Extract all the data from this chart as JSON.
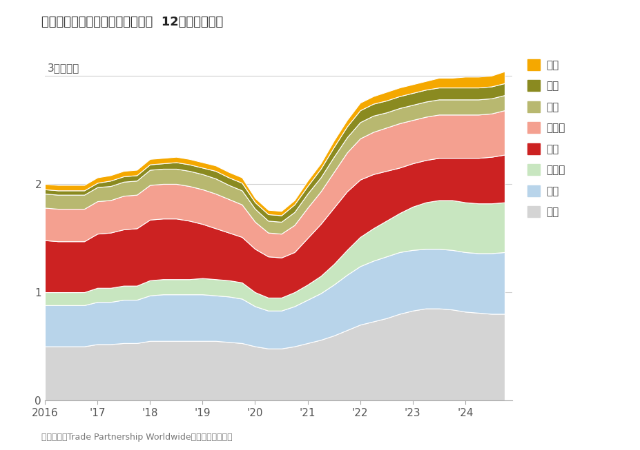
{
  "title": "按来源国统计的美国商品进口额，  12个月滚动总额",
  "ylabel": "3万亿美元",
  "source": "数据来源：Trade Partnership Worldwide，美国人口普查局",
  "background_color": "#ffffff",
  "plot_bg_color": "#ffffff",
  "grid_color": "#d0d0d0",
  "series_colors": {
    "其他": "#d4d4d4",
    "欧盟": "#b8d4ea",
    "墨西哥": "#c8e6c0",
    "中国": "#cc2222",
    "加拿大": "#f4a090",
    "日本": "#b8b870",
    "越南": "#8a8a20",
    "印度": "#f5a800"
  },
  "legend_order": [
    "印度",
    "越南",
    "日本",
    "加拿大",
    "中国",
    "墨西哥",
    "欧盟",
    "其他"
  ],
  "x_start_year": 2016.0,
  "x_end_year": 2024.9,
  "yticks": [
    0,
    1,
    2,
    3
  ],
  "x_ticklabels": [
    "2016",
    "'17",
    "'18",
    "'19",
    "'20",
    "'21",
    "'22",
    "'23",
    "'24"
  ],
  "x_tickpositions": [
    2016,
    2017,
    2018,
    2019,
    2020,
    2021,
    2022,
    2023,
    2024
  ],
  "data": {
    "years": [
      2016.0,
      2016.25,
      2016.5,
      2016.75,
      2017.0,
      2017.25,
      2017.5,
      2017.75,
      2018.0,
      2018.25,
      2018.5,
      2018.75,
      2019.0,
      2019.25,
      2019.5,
      2019.75,
      2020.0,
      2020.25,
      2020.5,
      2020.75,
      2021.0,
      2021.25,
      2021.5,
      2021.75,
      2022.0,
      2022.25,
      2022.5,
      2022.75,
      2023.0,
      2023.25,
      2023.5,
      2023.75,
      2024.0,
      2024.25,
      2024.5,
      2024.75
    ],
    "其他": [
      0.5,
      0.5,
      0.5,
      0.5,
      0.52,
      0.52,
      0.53,
      0.53,
      0.55,
      0.55,
      0.55,
      0.55,
      0.55,
      0.55,
      0.54,
      0.53,
      0.5,
      0.48,
      0.48,
      0.5,
      0.53,
      0.56,
      0.6,
      0.65,
      0.7,
      0.73,
      0.76,
      0.8,
      0.83,
      0.85,
      0.85,
      0.84,
      0.82,
      0.81,
      0.8,
      0.8
    ],
    "欧盟": [
      0.38,
      0.38,
      0.38,
      0.38,
      0.39,
      0.39,
      0.4,
      0.4,
      0.42,
      0.43,
      0.43,
      0.43,
      0.43,
      0.42,
      0.42,
      0.41,
      0.37,
      0.35,
      0.35,
      0.37,
      0.4,
      0.43,
      0.47,
      0.51,
      0.54,
      0.56,
      0.57,
      0.57,
      0.56,
      0.55,
      0.55,
      0.55,
      0.55,
      0.55,
      0.56,
      0.57
    ],
    "墨西哥": [
      0.12,
      0.12,
      0.12,
      0.12,
      0.13,
      0.13,
      0.13,
      0.13,
      0.14,
      0.14,
      0.14,
      0.14,
      0.15,
      0.15,
      0.15,
      0.15,
      0.13,
      0.12,
      0.12,
      0.13,
      0.14,
      0.16,
      0.19,
      0.23,
      0.27,
      0.3,
      0.33,
      0.36,
      0.4,
      0.43,
      0.45,
      0.46,
      0.46,
      0.46,
      0.46,
      0.46
    ],
    "中国": [
      0.48,
      0.47,
      0.47,
      0.47,
      0.5,
      0.51,
      0.52,
      0.53,
      0.56,
      0.56,
      0.56,
      0.54,
      0.5,
      0.47,
      0.44,
      0.42,
      0.4,
      0.38,
      0.37,
      0.37,
      0.43,
      0.48,
      0.52,
      0.54,
      0.53,
      0.5,
      0.46,
      0.42,
      0.4,
      0.39,
      0.39,
      0.39,
      0.41,
      0.42,
      0.43,
      0.44
    ],
    "加拿大": [
      0.3,
      0.3,
      0.3,
      0.3,
      0.3,
      0.3,
      0.31,
      0.31,
      0.32,
      0.32,
      0.32,
      0.32,
      0.32,
      0.32,
      0.31,
      0.3,
      0.25,
      0.22,
      0.22,
      0.25,
      0.28,
      0.3,
      0.33,
      0.36,
      0.38,
      0.39,
      0.4,
      0.41,
      0.4,
      0.4,
      0.4,
      0.4,
      0.4,
      0.4,
      0.4,
      0.41
    ],
    "日本": [
      0.13,
      0.13,
      0.13,
      0.13,
      0.13,
      0.13,
      0.13,
      0.13,
      0.14,
      0.14,
      0.14,
      0.14,
      0.14,
      0.14,
      0.13,
      0.13,
      0.12,
      0.11,
      0.11,
      0.12,
      0.13,
      0.13,
      0.14,
      0.14,
      0.15,
      0.15,
      0.14,
      0.14,
      0.14,
      0.14,
      0.14,
      0.14,
      0.14,
      0.14,
      0.14,
      0.14
    ],
    "越南": [
      0.04,
      0.04,
      0.04,
      0.04,
      0.04,
      0.05,
      0.05,
      0.05,
      0.05,
      0.05,
      0.06,
      0.06,
      0.06,
      0.07,
      0.07,
      0.07,
      0.06,
      0.06,
      0.06,
      0.07,
      0.07,
      0.08,
      0.09,
      0.1,
      0.11,
      0.11,
      0.11,
      0.11,
      0.11,
      0.11,
      0.11,
      0.11,
      0.11,
      0.11,
      0.11,
      0.11
    ],
    "印度": [
      0.05,
      0.05,
      0.05,
      0.05,
      0.05,
      0.05,
      0.05,
      0.05,
      0.05,
      0.05,
      0.05,
      0.05,
      0.05,
      0.05,
      0.05,
      0.05,
      0.04,
      0.04,
      0.04,
      0.04,
      0.05,
      0.05,
      0.06,
      0.06,
      0.07,
      0.07,
      0.08,
      0.08,
      0.08,
      0.08,
      0.09,
      0.09,
      0.1,
      0.1,
      0.1,
      0.11
    ]
  }
}
